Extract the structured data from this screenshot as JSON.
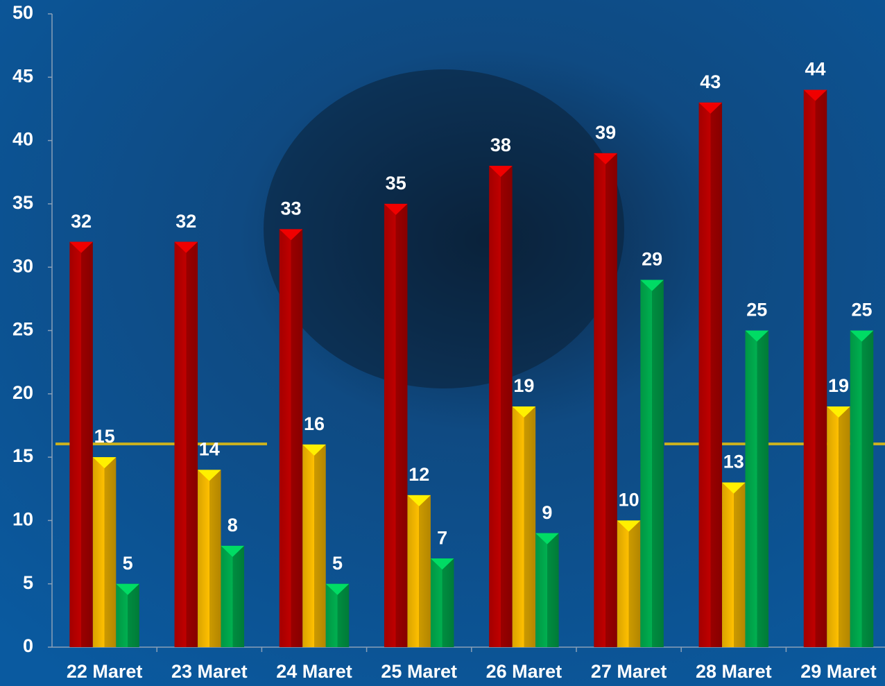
{
  "chart_data": {
    "type": "bar",
    "categories": [
      "22 Maret",
      "23 Maret",
      "24 Maret",
      "25 Maret",
      "26 Maret",
      "27 Maret",
      "28 Maret",
      "29 Maret"
    ],
    "series": [
      {
        "color": "#c00000",
        "values": [
          32,
          32,
          33,
          35,
          38,
          39,
          43,
          44
        ]
      },
      {
        "color": "#ffc000",
        "values": [
          15,
          14,
          16,
          12,
          19,
          10,
          13,
          19
        ]
      },
      {
        "color": "#00b050",
        "values": [
          5,
          8,
          5,
          7,
          9,
          29,
          25,
          25
        ]
      }
    ],
    "ylim": [
      0,
      50
    ],
    "yticks": [
      0,
      5,
      10,
      15,
      20,
      25,
      30,
      35,
      40,
      45,
      50
    ],
    "grid": false
  }
}
